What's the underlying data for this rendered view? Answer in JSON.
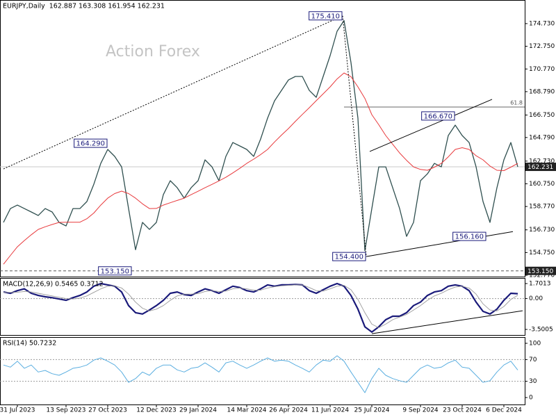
{
  "chart_data": [
    {
      "type": "line",
      "title": "EURJPY,Daily",
      "subtitle": "162.887 163.308 161.954 162.231",
      "watermark": "Action Forex",
      "categories": [
        null,
        null,
        "31 Jul 2023",
        null,
        null,
        null,
        null,
        null,
        null,
        "13 Sep 2023",
        null,
        null,
        null,
        null,
        null,
        "27 Oct 2023",
        null,
        null,
        null,
        null,
        null,
        null,
        "12 Dec 2023",
        null,
        null,
        null,
        null,
        null,
        "29 Jan 2024",
        null,
        null,
        null,
        null,
        null,
        null,
        "14 Mar 2024",
        null,
        null,
        null,
        null,
        null,
        "26 Apr 2024",
        null,
        null,
        null,
        null,
        null,
        "11 Jun 2024",
        null,
        null,
        null,
        null,
        null,
        "25 Jul 2024",
        null,
        null,
        null,
        null,
        null,
        null,
        "9 Sep 2024",
        null,
        null,
        null,
        null,
        null,
        "23 Oct 2024",
        null,
        null,
        null,
        null,
        null,
        "6 Dec 2024",
        null,
        null
      ],
      "series": [
        {
          "color": "#2f4f4f",
          "values": [
            157.38,
            158.59,
            158.89,
            158.59,
            158.29,
            157.98,
            158.59,
            158.29,
            157.38,
            157.07,
            158.59,
            158.59,
            159.2,
            160.71,
            162.53,
            163.75,
            163.14,
            162.23,
            158.59,
            155.0,
            157.38,
            156.77,
            157.38,
            159.8,
            161.02,
            160.41,
            159.5,
            160.41,
            161.02,
            162.84,
            162.23,
            161.02,
            163.14,
            164.35,
            164.05,
            163.75,
            163.14,
            164.66,
            166.48,
            167.99,
            168.9,
            169.81,
            170.12,
            170.12,
            168.9,
            168.3,
            170.12,
            171.94,
            174.06,
            175.0,
            171.33,
            166.48,
            154.9,
            158.59,
            162.23,
            162.23,
            160.41,
            158.59,
            156.16,
            157.38,
            161.02,
            161.62,
            162.53,
            162.23,
            164.96,
            165.87,
            164.96,
            164.35,
            162.23,
            159.2,
            157.38,
            160.41,
            162.84,
            164.35,
            162.23
          ]
        },
        {
          "color": "#e8393c",
          "values": [
            153.73,
            154.5,
            155.25,
            155.8,
            156.3,
            156.77,
            157.0,
            157.2,
            157.38,
            157.4,
            157.4,
            157.4,
            157.7,
            158.2,
            158.89,
            159.5,
            159.9,
            160.11,
            159.9,
            159.5,
            159.0,
            158.59,
            158.6,
            158.89,
            159.1,
            159.3,
            159.5,
            159.8,
            160.1,
            160.41,
            160.7,
            161.0,
            161.32,
            161.7,
            162.1,
            162.53,
            162.9,
            163.3,
            163.75,
            164.4,
            165.0,
            165.57,
            166.2,
            166.8,
            167.39,
            168.0,
            168.6,
            169.21,
            169.9,
            170.42,
            170.1,
            169.21,
            168.2,
            166.78,
            165.9,
            164.96,
            164.2,
            163.44,
            162.8,
            162.23,
            162.0,
            161.93,
            162.2,
            162.53,
            163.1,
            163.75,
            163.9,
            163.75,
            163.2,
            162.84,
            162.3,
            161.93,
            161.9,
            162.2,
            162.53
          ]
        }
      ],
      "ylim": [
        152.65,
        176.79
      ],
      "yticks": [
        {
          "value": 174.73,
          "label": "174.730"
        },
        {
          "value": 172.75,
          "label": "172.750"
        },
        {
          "value": 170.77,
          "label": "170.770"
        },
        {
          "value": 168.79,
          "label": "168.790"
        },
        {
          "value": 166.75,
          "label": "166.750"
        },
        {
          "value": 164.79,
          "label": "164.790"
        },
        {
          "value": 162.73,
          "label": "162.730"
        },
        {
          "value": 160.75,
          "label": "160.750"
        },
        {
          "value": 158.77,
          "label": "158.770"
        },
        {
          "value": 156.73,
          "label": "156.730"
        },
        {
          "value": 154.75,
          "label": "154.750"
        },
        {
          "value": 152.77,
          "label": "152.770"
        }
      ],
      "badges": [
        {
          "value": 162.231,
          "label": "162.231",
          "line": "solid"
        },
        {
          "value": 153.15,
          "label": "153.150",
          "line": "dashed"
        }
      ],
      "fib": {
        "value": 167.45,
        "label": "61.8",
        "from": 49
      },
      "trendlines": [
        {
          "x": [
            0,
            48.8
          ],
          "y": [
            162.05,
            175.41
          ],
          "style": "dotted"
        },
        {
          "x": [
            48.8,
            52.2
          ],
          "y": [
            175.41,
            154.4
          ],
          "style": "dotted"
        },
        {
          "x": [
            52.2,
            73.3
          ],
          "y": [
            154.4,
            156.58
          ],
          "style": "solid"
        },
        {
          "x": [
            52.7,
            70.3
          ],
          "y": [
            163.57,
            168.12
          ],
          "style": "solid"
        }
      ],
      "annotations": [
        {
          "value": 175.41,
          "label": "175.410",
          "x": 48.8
        },
        {
          "value": 164.29,
          "label": "164.290",
          "x": 15
        },
        {
          "value": 166.67,
          "label": "166.670",
          "x": 65
        },
        {
          "value": 156.16,
          "label": "156.160",
          "x": 69.5
        },
        {
          "value": 154.4,
          "label": "154.400",
          "x": 52.2
        },
        {
          "value": 153.15,
          "label": "153.150",
          "x": 18.5
        }
      ]
    },
    {
      "type": "line",
      "title": "MACD(12,26,9) 0.5465 0.3712",
      "series": [
        {
          "color": "#1a1a7a",
          "values": [
            0.75,
            0.6,
            0.9,
            1.1,
            0.6,
            0.35,
            0.2,
            0.1,
            -0.05,
            -0.2,
            0.1,
            0.35,
            0.75,
            1.4,
            1.7,
            1.55,
            1.4,
            0.75,
            -0.8,
            -1.6,
            -1.75,
            -1.3,
            -0.8,
            -0.2,
            0.6,
            0.75,
            0.45,
            0.35,
            0.75,
            1.1,
            0.9,
            0.6,
            1.0,
            1.4,
            1.25,
            0.9,
            0.75,
            1.1,
            1.55,
            1.4,
            1.55,
            1.55,
            1.6,
            1.55,
            0.9,
            0.6,
            1.0,
            1.4,
            1.7,
            1.4,
            0.35,
            -1.2,
            -3.2,
            -3.8,
            -3.2,
            -2.4,
            -2.0,
            -2.0,
            -1.6,
            -0.8,
            -0.4,
            0.35,
            0.75,
            0.9,
            1.4,
            1.55,
            1.4,
            0.9,
            -0.4,
            -1.45,
            -1.75,
            -1.2,
            -0.2,
            0.6,
            0.55
          ]
        },
        {
          "color": "#9a9a9a",
          "values": [
            0.7,
            0.7,
            0.72,
            0.8,
            0.75,
            0.6,
            0.45,
            0.3,
            0.15,
            0.0,
            -0.05,
            0.05,
            0.3,
            0.7,
            1.1,
            1.4,
            1.45,
            1.2,
            0.5,
            -0.4,
            -1.1,
            -1.4,
            -1.2,
            -0.8,
            -0.2,
            0.3,
            0.5,
            0.5,
            0.55,
            0.8,
            0.9,
            0.8,
            0.85,
            1.1,
            1.2,
            1.1,
            0.95,
            0.95,
            1.2,
            1.35,
            1.45,
            1.5,
            1.55,
            1.55,
            1.25,
            0.9,
            0.85,
            1.1,
            1.4,
            1.5,
            1.0,
            -0.1,
            -1.6,
            -2.9,
            -3.3,
            -2.9,
            -2.4,
            -2.1,
            -1.8,
            -1.3,
            -0.8,
            -0.2,
            0.3,
            0.6,
            1.0,
            1.3,
            1.4,
            1.2,
            0.5,
            -0.6,
            -1.3,
            -1.4,
            -0.9,
            -0.1,
            0.37
          ]
        }
      ],
      "ylim": [
        -4.131,
        2.332
      ],
      "yticks": [
        1.7013,
        {
          "value": 0,
          "label": "0.00"
        },
        -3.5005
      ],
      "levels": [
        0
      ],
      "trendlines": [
        {
          "x": [
            53,
            74.7
          ],
          "y": [
            -3.98,
            -1.38
          ],
          "style": "solid"
        }
      ]
    },
    {
      "type": "line",
      "title": "RSI(14) 50.7232",
      "series": [
        {
          "color": "#5aaee0",
          "values": [
            60,
            56,
            67,
            54,
            60,
            47,
            50,
            44,
            41,
            47,
            54,
            56,
            60,
            69,
            73,
            67,
            60,
            47,
            28,
            35,
            47,
            41,
            54,
            60,
            60,
            51,
            47,
            54,
            56,
            64,
            56,
            47,
            64,
            67,
            60,
            54,
            60,
            67,
            73,
            67,
            69,
            67,
            60,
            54,
            47,
            60,
            69,
            67,
            77,
            67,
            47,
            28,
            9,
            35,
            54,
            41,
            35,
            31,
            28,
            41,
            54,
            60,
            54,
            56,
            64,
            69,
            56,
            54,
            41,
            28,
            31,
            47,
            60,
            67,
            50.72
          ]
        }
      ],
      "ylim": [
        -12.8,
        111.5
      ],
      "yticks": [
        100,
        70,
        30,
        0
      ],
      "levels": [
        70,
        30
      ]
    }
  ]
}
